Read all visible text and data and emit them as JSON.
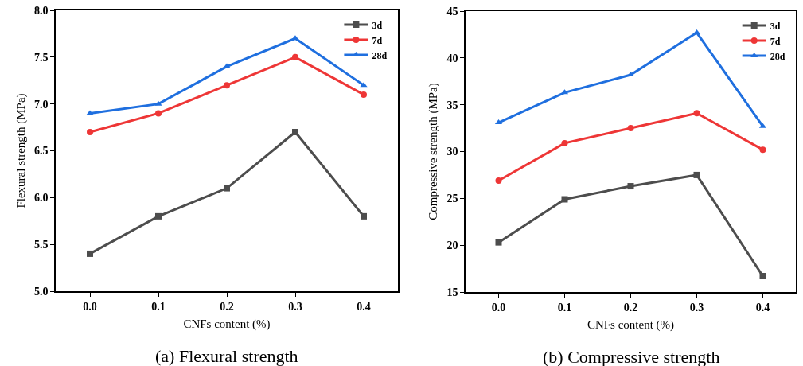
{
  "chart_data": [
    {
      "type": "line",
      "title": "(a) Flexural strength",
      "xlabel": "CNFs content (%)",
      "ylabel": "Flexural strength (MPa)",
      "x": [
        0.0,
        0.1,
        0.2,
        0.3,
        0.4
      ],
      "xlim": [
        -0.05,
        0.45
      ],
      "xticks": [
        {
          "value": 0,
          "label": "0.0"
        },
        0.1,
        0.2,
        0.3,
        0.4
      ],
      "ylim": [
        5.0,
        8.0
      ],
      "yticks": [
        {
          "value": 5,
          "label": "5.0"
        },
        5.5,
        {
          "value": 6,
          "label": "6.0"
        },
        6.5,
        {
          "value": 7,
          "label": "7.0"
        },
        7.5,
        {
          "value": 8,
          "label": "8.0"
        }
      ],
      "grid": false,
      "legend": "top right",
      "line_style": "solid",
      "series": [
        {
          "name": "3d",
          "color": "#4d4d4d",
          "marker": "square",
          "values": [
            5.4,
            5.8,
            6.1,
            6.7,
            5.8
          ]
        },
        {
          "name": "7d",
          "color": "#ee3636",
          "marker": "circle",
          "values": [
            6.7,
            6.9,
            7.2,
            7.5,
            7.1
          ]
        },
        {
          "name": "28d",
          "color": "#1f6fdf",
          "marker": "triangle",
          "values": [
            6.9,
            7.0,
            7.4,
            7.7,
            7.2
          ]
        }
      ]
    },
    {
      "type": "line",
      "title": "(b) Compressive strength",
      "xlabel": "CNFs content (%)",
      "ylabel": "Compressive strength (MPa)",
      "x": [
        0.0,
        0.1,
        0.2,
        0.3,
        0.4
      ],
      "xlim": [
        -0.05,
        0.45
      ],
      "xticks": [
        {
          "value": 0,
          "label": "0.0"
        },
        0.1,
        0.2,
        0.3,
        0.4
      ],
      "ylim": [
        15,
        45
      ],
      "yticks": [
        15,
        20,
        25,
        30,
        35,
        40,
        45
      ],
      "grid": false,
      "legend": "top right",
      "line_style": "solid",
      "series": [
        {
          "name": "3d",
          "color": "#4d4d4d",
          "marker": "square",
          "values": [
            20.3,
            24.9,
            26.3,
            27.5,
            16.7
          ]
        },
        {
          "name": "7d",
          "color": "#ee3636",
          "marker": "circle",
          "values": [
            26.9,
            30.9,
            32.5,
            34.1,
            30.2
          ]
        },
        {
          "name": "28d",
          "color": "#1f6fdf",
          "marker": "triangle",
          "values": [
            33.1,
            36.3,
            38.2,
            42.7,
            32.7
          ]
        }
      ]
    }
  ]
}
